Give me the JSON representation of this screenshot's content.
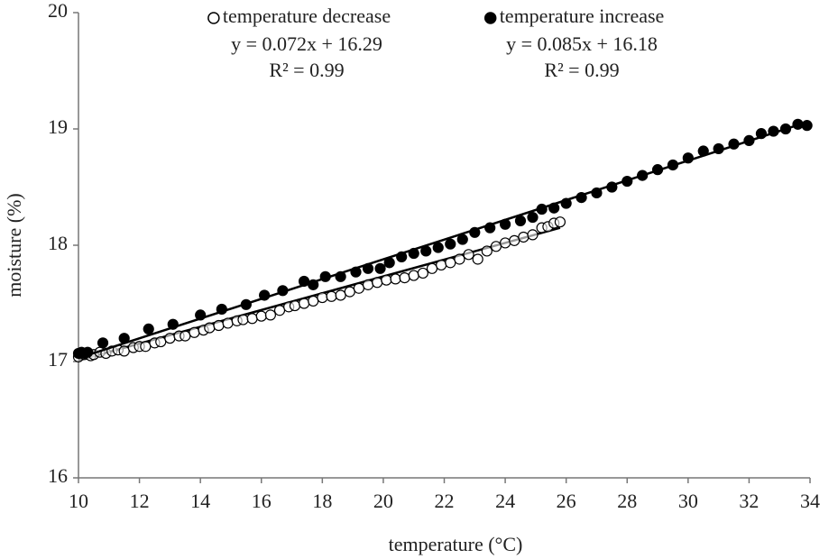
{
  "chart_data": {
    "type": "scatter",
    "xlabel": "temperature (°C)",
    "ylabel": "moisture (%)",
    "xlim": [
      10,
      34
    ],
    "ylim": [
      16,
      20
    ],
    "xticks": [
      10,
      12,
      14,
      16,
      18,
      20,
      22,
      24,
      26,
      28,
      30,
      32,
      34
    ],
    "yticks": [
      16,
      17,
      18,
      19,
      20
    ],
    "grid": false,
    "series": [
      {
        "name": "temperature decrease",
        "color": "#000000",
        "marker": "open",
        "equation": "y = 0.072x + 16.29",
        "r2": "R² = 0.99",
        "x": [
          10.0,
          10.2,
          10.4,
          10.5,
          10.7,
          10.9,
          11.1,
          11.3,
          11.5,
          11.8,
          12.0,
          12.2,
          12.5,
          12.7,
          13.0,
          13.3,
          13.5,
          13.8,
          14.1,
          14.3,
          14.6,
          14.9,
          15.2,
          15.4,
          15.7,
          16.0,
          16.3,
          16.6,
          16.9,
          17.1,
          17.4,
          17.7,
          18.0,
          18.3,
          18.6,
          18.9,
          19.2,
          19.5,
          19.8,
          20.1,
          20.4,
          20.7,
          21.0,
          21.3,
          21.6,
          21.9,
          22.2,
          22.5,
          22.8,
          23.1,
          23.4,
          23.7,
          24.0,
          24.3,
          24.6,
          24.9,
          25.2,
          25.4,
          25.6,
          25.8
        ],
        "values": [
          17.04,
          17.06,
          17.05,
          17.06,
          17.08,
          17.07,
          17.09,
          17.1,
          17.09,
          17.12,
          17.13,
          17.13,
          17.16,
          17.17,
          17.2,
          17.22,
          17.22,
          17.25,
          17.27,
          17.29,
          17.31,
          17.33,
          17.35,
          17.36,
          17.37,
          17.39,
          17.4,
          17.44,
          17.47,
          17.48,
          17.5,
          17.52,
          17.55,
          17.56,
          17.57,
          17.6,
          17.63,
          17.66,
          17.68,
          17.7,
          17.71,
          17.72,
          17.74,
          17.76,
          17.8,
          17.83,
          17.85,
          17.88,
          17.92,
          17.88,
          17.95,
          17.99,
          18.02,
          18.04,
          18.07,
          18.09,
          18.15,
          18.16,
          18.19,
          18.2
        ],
        "trend": {
          "x": [
            10,
            25.8
          ],
          "values": [
            17.01,
            18.15
          ]
        }
      },
      {
        "name": "temperature increase",
        "color": "#000000",
        "marker": "filled",
        "equation": "y = 0.085x + 16.18",
        "r2": "R² = 0.99",
        "x": [
          10.0,
          10.1,
          10.2,
          10.3,
          10.8,
          11.5,
          12.3,
          13.1,
          14.0,
          14.7,
          15.5,
          16.1,
          16.7,
          17.4,
          17.7,
          18.1,
          18.6,
          19.1,
          19.5,
          19.9,
          20.2,
          20.6,
          21.0,
          21.4,
          21.8,
          22.2,
          22.6,
          23.0,
          23.5,
          24.0,
          24.5,
          24.9,
          25.2,
          25.6,
          26.0,
          26.5,
          27.0,
          27.5,
          28.0,
          28.5,
          29.0,
          29.5,
          30.0,
          30.5,
          31.0,
          31.5,
          32.0,
          32.4,
          32.8,
          33.2,
          33.6,
          33.9
        ],
        "values": [
          17.07,
          17.08,
          17.07,
          17.08,
          17.16,
          17.2,
          17.28,
          17.32,
          17.4,
          17.45,
          17.49,
          17.57,
          17.61,
          17.69,
          17.66,
          17.73,
          17.73,
          17.77,
          17.8,
          17.8,
          17.85,
          17.9,
          17.93,
          17.95,
          17.98,
          18.01,
          18.05,
          18.11,
          18.15,
          18.18,
          18.21,
          18.24,
          18.31,
          18.32,
          18.36,
          18.41,
          18.45,
          18.5,
          18.55,
          18.6,
          18.65,
          18.69,
          18.75,
          18.81,
          18.83,
          18.87,
          18.9,
          18.96,
          18.98,
          19.0,
          19.04,
          19.03
        ],
        "trend": {
          "x": [
            10,
            33.8
          ],
          "values": [
            17.03,
            19.05
          ]
        }
      }
    ]
  }
}
